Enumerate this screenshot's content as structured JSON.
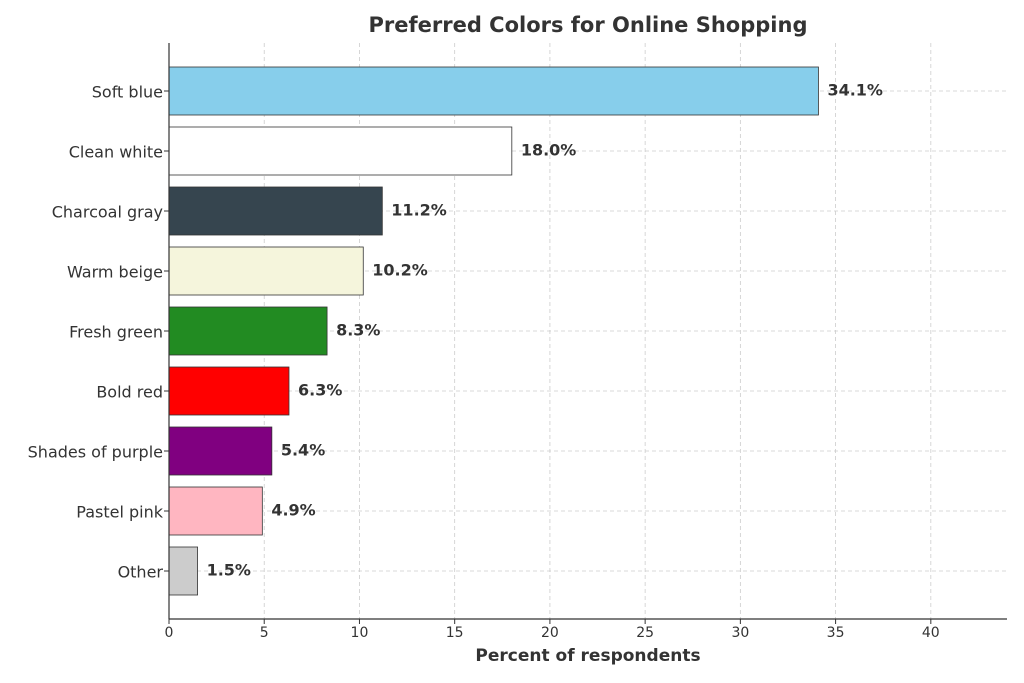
{
  "chart_data": {
    "type": "barh",
    "title": "Preferred Colors for Online Shopping",
    "x_label": "Percent of respondents",
    "categories": [
      "Soft blue",
      "Clean white",
      "Charcoal gray",
      "Warm beige",
      "Fresh green",
      "Bold red",
      "Shades of purple",
      "Pastel pink",
      "Other"
    ],
    "values": [
      34.1,
      18.0,
      11.2,
      10.2,
      8.3,
      6.3,
      5.4,
      4.9,
      1.5
    ],
    "value_labels": [
      "34.1%",
      "18.0%",
      "11.2%",
      "10.2%",
      "8.3%",
      "6.3%",
      "5.4%",
      "4.9%",
      "1.5%"
    ],
    "colors": [
      "#87ceeb",
      "#ffffff",
      "#36454f",
      "#f5f5dc",
      "#228b22",
      "#ff0000",
      "#800080",
      "#ffb6c1",
      "#cccccc"
    ],
    "xlim": [
      0,
      44
    ],
    "xticks": [
      0,
      5,
      10,
      15,
      20,
      25,
      30,
      35,
      40
    ],
    "grid": true
  }
}
